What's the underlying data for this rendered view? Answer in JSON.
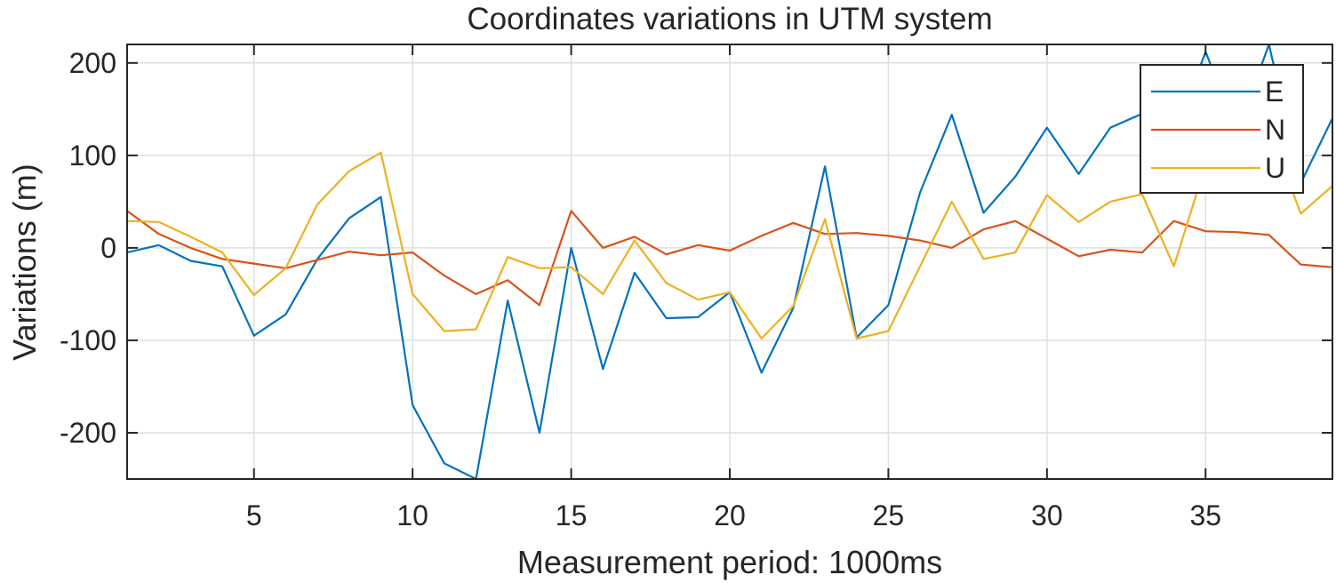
{
  "chart_data": {
    "type": "line",
    "title": "Coordinates variations in UTM system",
    "xlabel": "Measurement period: 1000ms",
    "ylabel": "Variations (m)",
    "xlim": [
      1,
      39
    ],
    "ylim": [
      -250,
      220
    ],
    "xticks": [
      5,
      10,
      15,
      20,
      25,
      30,
      35
    ],
    "yticks": [
      -200,
      -100,
      0,
      100,
      200
    ],
    "grid": true,
    "legend_position": "top-right",
    "x": [
      1,
      2,
      3,
      4,
      5,
      6,
      7,
      8,
      9,
      10,
      11,
      12,
      13,
      14,
      15,
      16,
      17,
      18,
      19,
      20,
      21,
      22,
      23,
      24,
      25,
      26,
      27,
      28,
      29,
      30,
      31,
      32,
      33,
      34,
      35,
      36,
      37,
      38,
      39
    ],
    "series": [
      {
        "name": "E",
        "color": "#0072BD",
        "values": [
          -5,
          3,
          -14,
          -20,
          -95,
          -72,
          -12,
          32,
          55,
          -170,
          -233,
          -250,
          -57,
          -200,
          0,
          -131,
          -27,
          -76,
          -75,
          -48,
          -135,
          -65,
          88,
          -97,
          -62,
          60,
          144,
          38,
          77,
          130,
          80,
          130,
          145,
          120,
          212,
          125,
          220,
          70,
          140
        ]
      },
      {
        "name": "N",
        "color": "#D95319",
        "values": [
          40,
          15,
          0,
          -12,
          -17,
          -22,
          -13,
          -4,
          -8,
          -5,
          -30,
          -50,
          -35,
          -62,
          40,
          0,
          12,
          -7,
          3,
          -3,
          13,
          27,
          15,
          16,
          13,
          8,
          0,
          20,
          29,
          10,
          -9,
          -2,
          -5,
          29,
          18,
          17,
          14,
          -18,
          -21
        ]
      },
      {
        "name": "U",
        "color": "#EDB120",
        "values": [
          29,
          28,
          12,
          -5,
          -51,
          -22,
          47,
          83,
          103,
          -50,
          -90,
          -88,
          -10,
          -22,
          -21,
          -50,
          8,
          -38,
          -56,
          -48,
          -98,
          -63,
          31,
          -98,
          -90,
          -20,
          50,
          -12,
          -5,
          57,
          28,
          50,
          58,
          -20,
          90,
          140,
          130,
          37,
          67
        ]
      }
    ]
  }
}
